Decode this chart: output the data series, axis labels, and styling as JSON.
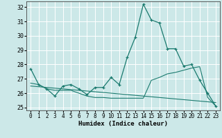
{
  "xlabel": "Humidex (Indice chaleur)",
  "background_color": "#cce8e8",
  "grid_color": "#ffffff",
  "line_color": "#1a7a6e",
  "xlim": [
    -0.5,
    23.5
  ],
  "ylim": [
    24.8,
    32.4
  ],
  "x_ticks": [
    0,
    1,
    2,
    3,
    4,
    5,
    6,
    7,
    8,
    9,
    10,
    11,
    12,
    13,
    14,
    15,
    16,
    17,
    18,
    19,
    20,
    21,
    22,
    23
  ],
  "y_ticks": [
    25,
    26,
    27,
    28,
    29,
    30,
    31,
    32
  ],
  "line1_x": [
    0,
    1,
    2,
    3,
    4,
    5,
    6,
    7,
    8,
    9,
    10,
    11,
    12,
    13,
    14,
    15,
    16,
    17,
    18,
    19,
    20,
    21,
    22,
    23
  ],
  "line1_y": [
    27.7,
    26.6,
    26.3,
    25.8,
    26.5,
    26.6,
    26.3,
    25.9,
    26.4,
    26.4,
    27.1,
    26.6,
    28.5,
    29.9,
    32.2,
    31.1,
    30.9,
    29.1,
    29.1,
    27.9,
    28.0,
    26.9,
    26.0,
    25.1
  ],
  "line2_x": [
    0,
    1,
    2,
    3,
    4,
    5,
    6,
    7,
    8,
    9,
    10,
    11,
    12,
    13,
    14,
    15,
    16,
    17,
    18,
    19,
    20,
    21,
    22,
    23
  ],
  "line2_y": [
    26.7,
    26.6,
    26.3,
    26.2,
    26.2,
    26.2,
    26.0,
    25.8,
    25.7,
    25.7,
    25.65,
    25.65,
    25.65,
    25.65,
    25.65,
    26.9,
    27.1,
    27.35,
    27.45,
    27.6,
    27.75,
    27.85,
    25.7,
    25.1
  ],
  "line3_x": [
    0,
    1,
    2,
    3,
    4,
    5,
    6,
    7,
    8,
    9,
    10,
    11,
    12,
    13,
    14,
    15,
    16,
    17,
    18,
    19,
    20,
    21,
    22,
    23
  ],
  "line3_y": [
    26.5,
    26.45,
    26.4,
    26.35,
    26.3,
    26.25,
    26.2,
    26.15,
    26.1,
    26.05,
    26.0,
    25.95,
    25.9,
    25.85,
    25.8,
    25.75,
    25.7,
    25.65,
    25.6,
    25.55,
    25.5,
    25.45,
    25.4,
    25.35
  ]
}
